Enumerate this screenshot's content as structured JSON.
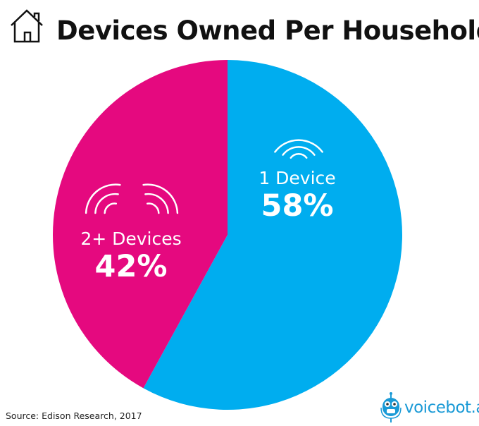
{
  "title": "Devices Owned Per Household",
  "source": "Source: Edison Research, 2017",
  "logo": {
    "text": "voicebot.ai",
    "tm": "™"
  },
  "icons": {
    "title": "house-icon",
    "slice": "wifi-signal-icon"
  },
  "chart_data": {
    "type": "pie",
    "title": "Devices Owned Per Household",
    "start": "top, clockwise",
    "slices": [
      {
        "label": "1 Device",
        "value": 58,
        "display": "58%",
        "color": "#00adef"
      },
      {
        "label": "2+ Devices",
        "value": 42,
        "display": "42%",
        "color": "#e5097f"
      }
    ]
  }
}
